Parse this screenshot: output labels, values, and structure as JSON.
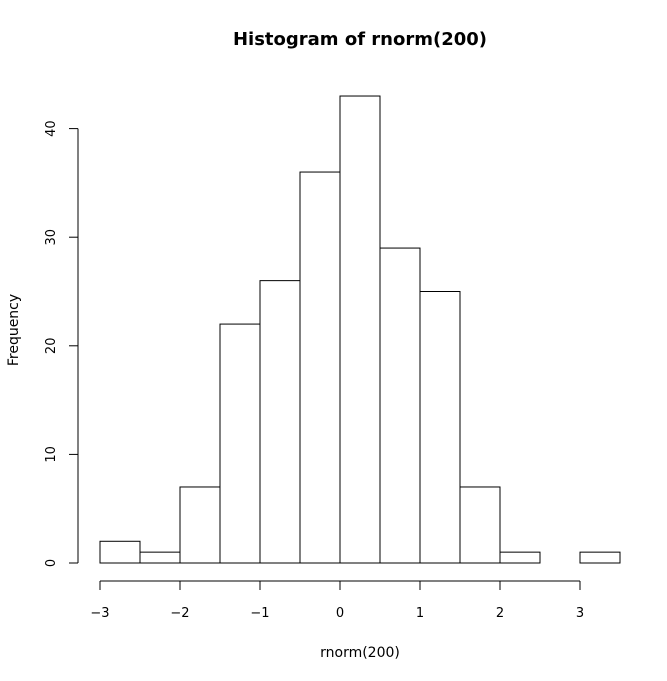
{
  "chart_data": {
    "type": "bar",
    "title": "Histogram of rnorm(200)",
    "xlabel": "rnorm(200)",
    "ylabel": "Frequency",
    "bin_edges": [
      -3,
      -2.5,
      -2,
      -1.5,
      -1,
      -0.5,
      0,
      0.5,
      1,
      1.5,
      2,
      2.5,
      3,
      3.5
    ],
    "values": [
      2,
      1,
      7,
      22,
      26,
      36,
      43,
      29,
      25,
      7,
      1,
      0,
      1
    ],
    "xlim": [
      -3,
      3.5
    ],
    "ylim": [
      0,
      43
    ],
    "x_ticks": [
      -3,
      -2,
      -1,
      0,
      1,
      2,
      3
    ],
    "x_tick_labels": [
      "−3",
      "−2",
      "−1",
      "0",
      "1",
      "2",
      "3"
    ],
    "y_ticks": [
      0,
      10,
      20,
      30,
      40
    ],
    "y_tick_labels": [
      "0",
      "10",
      "20",
      "30",
      "40"
    ],
    "grid": false,
    "colors": {
      "bar_fill": "#ffffff",
      "bar_stroke": "#000000",
      "axis": "#000000"
    }
  }
}
